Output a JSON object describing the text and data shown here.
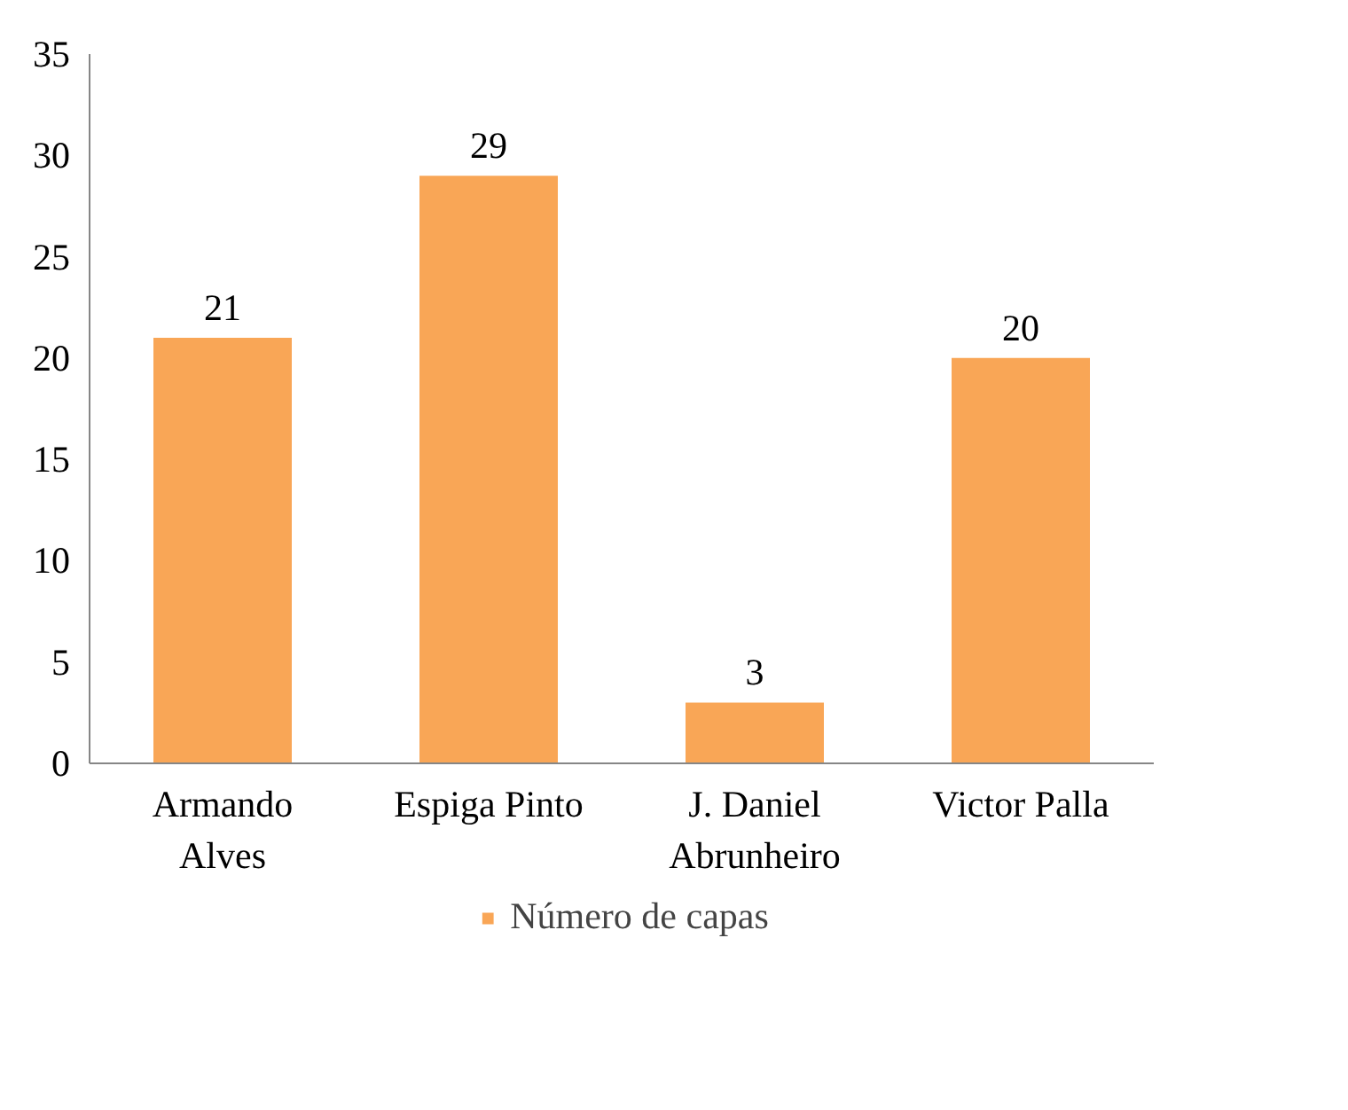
{
  "chart_data": {
    "type": "bar",
    "categories": [
      "Armando Alves",
      "Espiga Pinto",
      "J. Daniel Abrunheiro",
      "Victor Palla"
    ],
    "series": [
      {
        "name": "Número de capas",
        "color": "#f9a656",
        "values": [
          21,
          29,
          3,
          20
        ]
      }
    ],
    "ylim": [
      0,
      35
    ],
    "yticks": [
      0,
      5,
      10,
      15,
      20,
      25,
      30,
      35
    ],
    "data_labels": true,
    "grid": false,
    "legend": "bottom"
  }
}
